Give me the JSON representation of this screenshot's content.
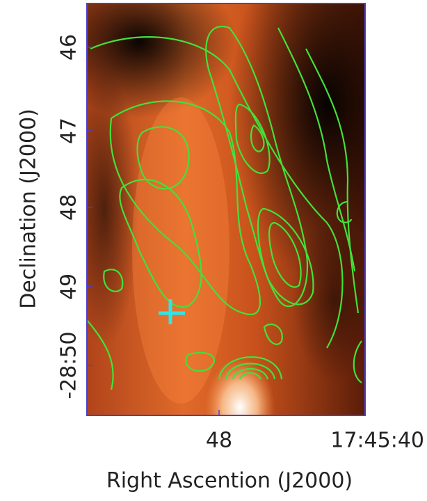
{
  "figure": {
    "y_label": "Declination (J2000)",
    "x_label": "Right Ascention (J2000)",
    "y_ticks": [
      "46",
      "47",
      "48",
      "49",
      "-28:50"
    ],
    "x_ticks": [
      "48",
      "17:45:40"
    ]
  }
}
